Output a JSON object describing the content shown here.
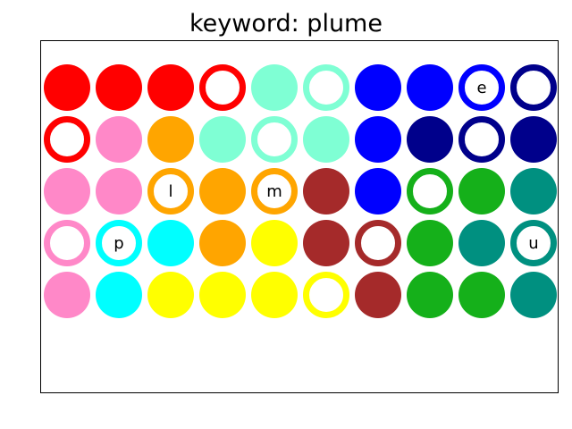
{
  "title": "keyword: plume",
  "palette": {
    "red": "#ff0000",
    "aquamarine": "#7fffd4",
    "blue": "#0000ff",
    "navy": "#00008b",
    "pink": "#ff88c8",
    "orange": "#ffa500",
    "brown": "#a52a2a",
    "green": "#15b01a",
    "teal": "#009080",
    "cyan": "#00ffff",
    "yellow": "#ffff00"
  },
  "grid": [
    [
      {
        "color": "red",
        "style": "filled",
        "letter": ""
      },
      {
        "color": "red",
        "style": "filled",
        "letter": ""
      },
      {
        "color": "red",
        "style": "filled",
        "letter": ""
      },
      {
        "color": "red",
        "style": "ring",
        "letter": ""
      },
      {
        "color": "aquamarine",
        "style": "filled",
        "letter": ""
      },
      {
        "color": "aquamarine",
        "style": "ring",
        "letter": ""
      },
      {
        "color": "blue",
        "style": "filled",
        "letter": ""
      },
      {
        "color": "blue",
        "style": "filled",
        "letter": ""
      },
      {
        "color": "blue",
        "style": "ring",
        "letter": "e"
      },
      {
        "color": "navy",
        "style": "ring",
        "letter": ""
      }
    ],
    [
      {
        "color": "red",
        "style": "ring",
        "letter": ""
      },
      {
        "color": "pink",
        "style": "filled",
        "letter": ""
      },
      {
        "color": "orange",
        "style": "filled",
        "letter": ""
      },
      {
        "color": "aquamarine",
        "style": "filled",
        "letter": ""
      },
      {
        "color": "aquamarine",
        "style": "ring",
        "letter": ""
      },
      {
        "color": "aquamarine",
        "style": "filled",
        "letter": ""
      },
      {
        "color": "blue",
        "style": "filled",
        "letter": ""
      },
      {
        "color": "navy",
        "style": "filled",
        "letter": ""
      },
      {
        "color": "navy",
        "style": "ring",
        "letter": ""
      },
      {
        "color": "navy",
        "style": "filled",
        "letter": ""
      }
    ],
    [
      {
        "color": "pink",
        "style": "filled",
        "letter": ""
      },
      {
        "color": "pink",
        "style": "filled",
        "letter": ""
      },
      {
        "color": "orange",
        "style": "ring",
        "letter": "l"
      },
      {
        "color": "orange",
        "style": "filled",
        "letter": ""
      },
      {
        "color": "orange",
        "style": "ring",
        "letter": "m"
      },
      {
        "color": "brown",
        "style": "filled",
        "letter": ""
      },
      {
        "color": "blue",
        "style": "filled",
        "letter": ""
      },
      {
        "color": "green",
        "style": "ring",
        "letter": ""
      },
      {
        "color": "green",
        "style": "filled",
        "letter": ""
      },
      {
        "color": "teal",
        "style": "filled",
        "letter": ""
      }
    ],
    [
      {
        "color": "pink",
        "style": "ring",
        "letter": ""
      },
      {
        "color": "cyan",
        "style": "ring",
        "letter": "p"
      },
      {
        "color": "cyan",
        "style": "filled",
        "letter": ""
      },
      {
        "color": "orange",
        "style": "filled",
        "letter": ""
      },
      {
        "color": "yellow",
        "style": "filled",
        "letter": ""
      },
      {
        "color": "brown",
        "style": "filled",
        "letter": ""
      },
      {
        "color": "brown",
        "style": "ring",
        "letter": ""
      },
      {
        "color": "green",
        "style": "filled",
        "letter": ""
      },
      {
        "color": "teal",
        "style": "filled",
        "letter": ""
      },
      {
        "color": "teal",
        "style": "ring",
        "letter": "u"
      }
    ],
    [
      {
        "color": "pink",
        "style": "filled",
        "letter": ""
      },
      {
        "color": "cyan",
        "style": "filled",
        "letter": ""
      },
      {
        "color": "yellow",
        "style": "filled",
        "letter": ""
      },
      {
        "color": "yellow",
        "style": "filled",
        "letter": ""
      },
      {
        "color": "yellow",
        "style": "filled",
        "letter": ""
      },
      {
        "color": "yellow",
        "style": "ring",
        "letter": ""
      },
      {
        "color": "brown",
        "style": "filled",
        "letter": ""
      },
      {
        "color": "green",
        "style": "filled",
        "letter": ""
      },
      {
        "color": "green",
        "style": "filled",
        "letter": ""
      },
      {
        "color": "teal",
        "style": "filled",
        "letter": ""
      }
    ]
  ]
}
